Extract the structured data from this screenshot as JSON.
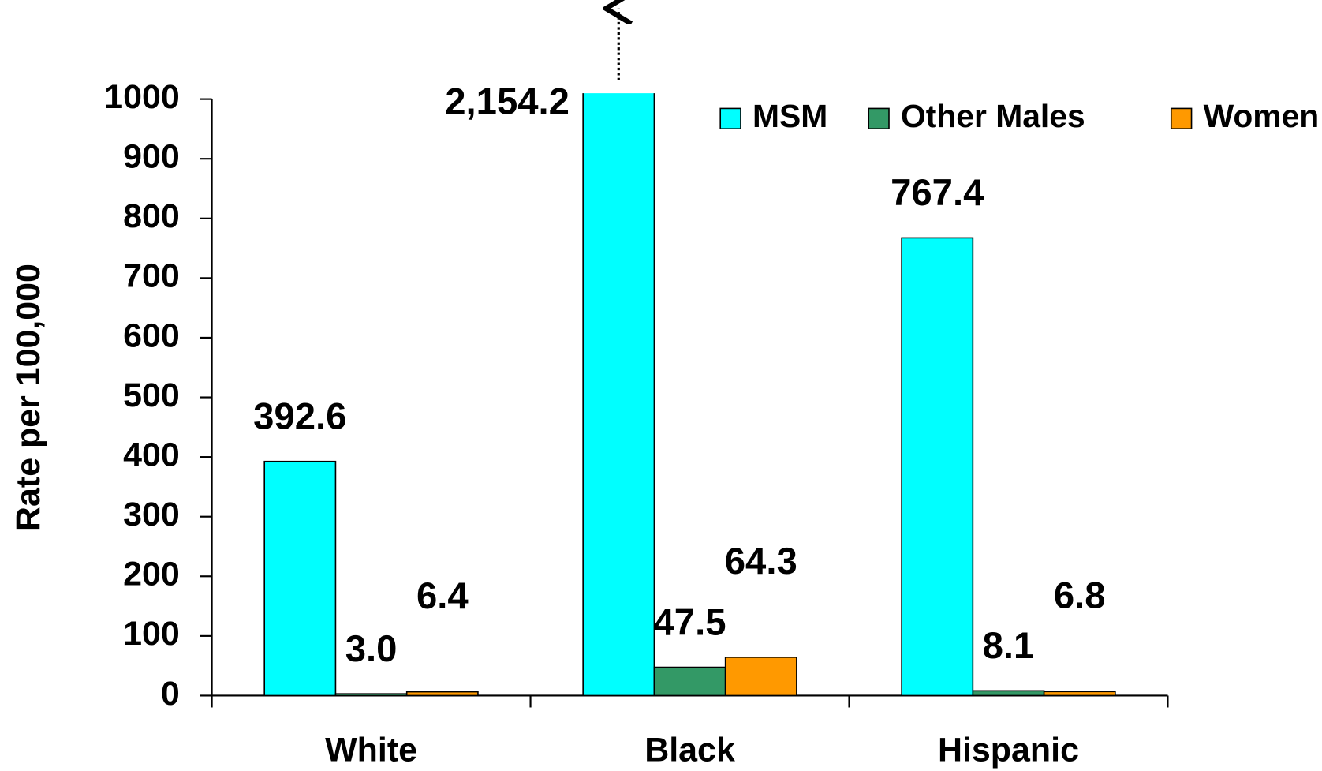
{
  "chart_data": {
    "type": "bar",
    "y_label": "Rate per 100,000",
    "categories": [
      "White",
      "Black",
      "Hispanic"
    ],
    "series": [
      {
        "name": "MSM",
        "color": "#00ffff",
        "values": [
          392.6,
          2154.2,
          767.4
        ],
        "value_labels": [
          "392.6",
          "2,154.2",
          "767.4"
        ]
      },
      {
        "name": "Other Males",
        "color": "#339966",
        "values": [
          3.0,
          47.5,
          8.1
        ],
        "value_labels": [
          "3.0",
          "47.5",
          "8.1"
        ]
      },
      {
        "name": "Women",
        "color": "#ff9900",
        "values": [
          6.4,
          64.3,
          6.8
        ],
        "value_labels": [
          "6.4",
          "64.3",
          "6.8"
        ]
      }
    ],
    "ylim": [
      0,
      1000
    ],
    "yticks": [
      0,
      100,
      200,
      300,
      400,
      500,
      600,
      700,
      800,
      900,
      1000
    ],
    "grid": false,
    "legend": "top-right"
  }
}
